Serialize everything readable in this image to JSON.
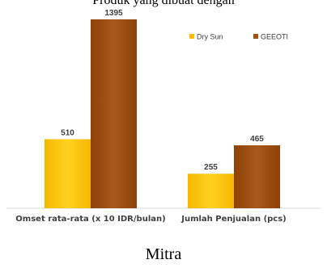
{
  "top_text": "Produk yang dibuat dengan",
  "caption": "Mitra",
  "chart_data": {
    "type": "bar",
    "categories": [
      "Omset rata-rata (x 10 IDR/bulan)",
      "Jumlah Penjualan (pcs)"
    ],
    "series": [
      {
        "name": "Dry Sun",
        "values": [
          510,
          255
        ],
        "color": "#FFC000"
      },
      {
        "name": "GEEOTI",
        "values": [
          1395,
          465
        ],
        "color": "#A0500F"
      }
    ],
    "ylim": [
      0,
      1395
    ],
    "grid": false,
    "legend_position": "top-right",
    "data_labels": true
  }
}
